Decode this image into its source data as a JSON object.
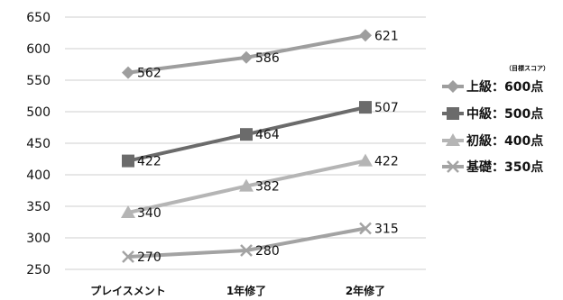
{
  "chart_data": {
    "type": "line",
    "categories": [
      "プレイスメント",
      "1年修了",
      "2年修了"
    ],
    "ylim": [
      250,
      650
    ],
    "yticks": [
      250,
      300,
      350,
      400,
      450,
      500,
      550,
      600,
      650
    ],
    "grid": true,
    "legend_position": "right",
    "legend_note": "（目標スコア）",
    "series": [
      {
        "name": "上級：600点",
        "values": [
          562,
          586,
          621
        ],
        "marker": "diamond",
        "color": "#9e9e9e"
      },
      {
        "name": "中級：500点",
        "values": [
          422,
          464,
          507
        ],
        "marker": "square",
        "color": "#6b6b6b"
      },
      {
        "name": "初級：400点",
        "values": [
          340,
          382,
          422
        ],
        "marker": "triangle",
        "color": "#b5b5b5"
      },
      {
        "name": "基礎：350点",
        "values": [
          270,
          280,
          315
        ],
        "marker": "x",
        "color": "#a3a3a3"
      }
    ]
  }
}
